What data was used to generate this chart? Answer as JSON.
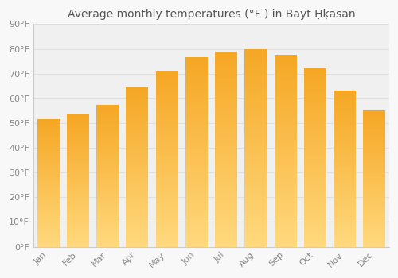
{
  "title": "Average monthly temperatures (°F ) in Bayt Ḥḳasan",
  "months": [
    "Jan",
    "Feb",
    "Mar",
    "Apr",
    "May",
    "Jun",
    "Jul",
    "Aug",
    "Sep",
    "Oct",
    "Nov",
    "Dec"
  ],
  "values": [
    51.5,
    53.5,
    57.5,
    64.5,
    71.0,
    76.5,
    79.0,
    80.0,
    77.5,
    72.0,
    63.0,
    55.0
  ],
  "ylim": [
    0,
    90
  ],
  "yticks": [
    0,
    10,
    20,
    30,
    40,
    50,
    60,
    70,
    80,
    90
  ],
  "background_color": "#f8f8f8",
  "plot_bg_color": "#f0f0f0",
  "grid_color": "#e0e0e0",
  "bar_color_top": "#F5A623",
  "bar_color_bottom": "#FFD97D",
  "title_fontsize": 10,
  "tick_fontsize": 8,
  "tick_color": "#888888",
  "title_color": "#555555"
}
